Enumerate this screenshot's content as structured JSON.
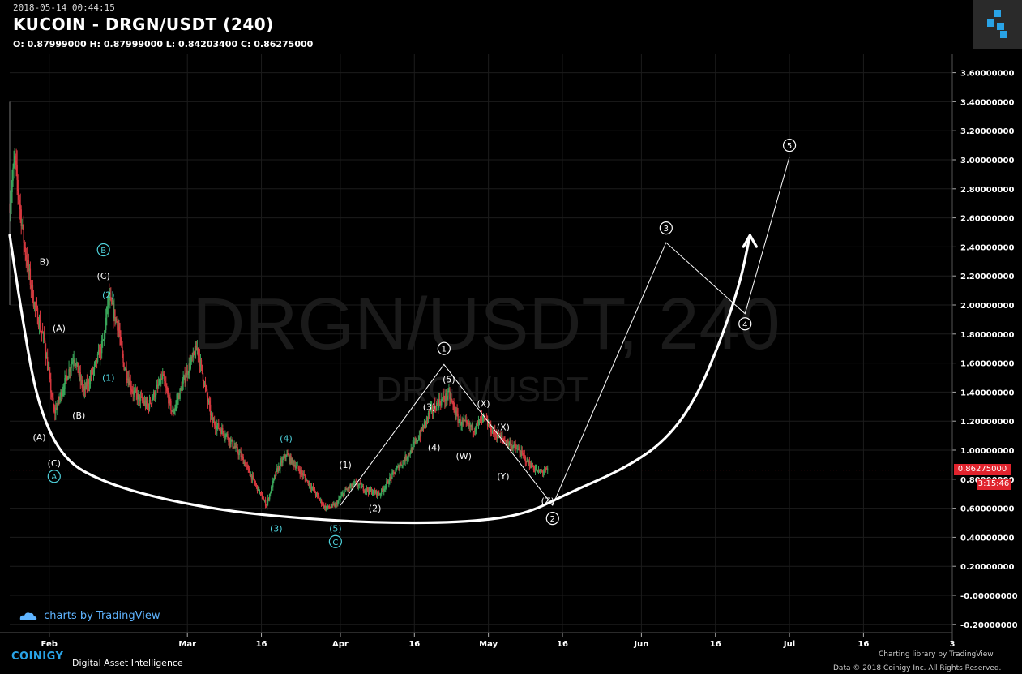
{
  "header": {
    "timestamp": "2018-05-14 00:44:15",
    "title": "KUCOIN - DRGN/USDT (240)",
    "ohlc": "O: 0.87999000 H: 0.87999000 L: 0.84203400 C: 0.86275000"
  },
  "watermark": {
    "main": "DRGN/USDT, 240",
    "sub": "DRGN/USDT"
  },
  "badges": {
    "last_price": "0.86275000",
    "countdown": "3:15:46"
  },
  "footer": {
    "tradingview": "charts by TradingView",
    "coinigy_logo": "COINIGY",
    "coinigy_tagline": "Digital Asset Intelligence",
    "charting_library": "Charting library by TradingView",
    "copyright": "Data © 2018 Coinigy Inc. All Rights Reserved."
  },
  "colors": {
    "background": "#000000",
    "up": "#3aa65a",
    "down": "#d8383f",
    "badge": "#e0232d",
    "accent_cyan": "#4fd2dc",
    "logo_blue": "#29a3e6"
  },
  "chart_data": {
    "type": "candlestick",
    "title": "KUCOIN - DRGN/USDT (240)",
    "y_axis": {
      "ticks": [
        "-0.20000000",
        "-0.00000000",
        "0.20000000",
        "0.40000000",
        "0.60000000",
        "0.80000000",
        "1.00000000",
        "1.20000000",
        "1.40000000",
        "1.60000000",
        "1.80000000",
        "2.00000000",
        "2.20000000",
        "2.40000000",
        "2.60000000",
        "2.80000000",
        "3.00000000",
        "3.20000000",
        "3.40000000",
        "3.60000000"
      ],
      "range": [
        -0.2,
        3.6
      ],
      "position": "right"
    },
    "x_axis": {
      "ticks": [
        "Feb",
        "Mar",
        "16",
        "Apr",
        "16",
        "May",
        "16",
        "Jun",
        "16",
        "Jul",
        "16",
        "3"
      ],
      "range": [
        "2018-01-24",
        "2018-08-03"
      ]
    },
    "price_path": [
      [
        "2018-01-24",
        2.7
      ],
      [
        "2018-01-25",
        3.0
      ],
      [
        "2018-01-27",
        2.4
      ],
      [
        "2018-01-29",
        2.0
      ],
      [
        "2018-01-31",
        1.75
      ],
      [
        "2018-02-02",
        1.25
      ],
      [
        "2018-02-04",
        1.45
      ],
      [
        "2018-02-06",
        1.65
      ],
      [
        "2018-02-08",
        1.4
      ],
      [
        "2018-02-10",
        1.55
      ],
      [
        "2018-02-12",
        1.75
      ],
      [
        "2018-02-13",
        2.05
      ],
      [
        "2018-02-15",
        1.85
      ],
      [
        "2018-02-16",
        1.6
      ],
      [
        "2018-02-18",
        1.4
      ],
      [
        "2018-02-21",
        1.3
      ],
      [
        "2018-02-24",
        1.5
      ],
      [
        "2018-02-26",
        1.25
      ],
      [
        "2018-03-01",
        1.55
      ],
      [
        "2018-03-03",
        1.7
      ],
      [
        "2018-03-06",
        1.2
      ],
      [
        "2018-03-09",
        1.1
      ],
      [
        "2018-03-12",
        0.95
      ],
      [
        "2018-03-15",
        0.75
      ],
      [
        "2018-03-17",
        0.62
      ],
      [
        "2018-03-19",
        0.85
      ],
      [
        "2018-03-21",
        0.97
      ],
      [
        "2018-03-24",
        0.85
      ],
      [
        "2018-03-27",
        0.7
      ],
      [
        "2018-03-29",
        0.6
      ],
      [
        "2018-03-31",
        0.62
      ],
      [
        "2018-04-02",
        0.72
      ],
      [
        "2018-04-04",
        0.77
      ],
      [
        "2018-04-06",
        0.73
      ],
      [
        "2018-04-09",
        0.7
      ],
      [
        "2018-04-12",
        0.85
      ],
      [
        "2018-04-15",
        0.98
      ],
      [
        "2018-04-17",
        1.1
      ],
      [
        "2018-04-19",
        1.25
      ],
      [
        "2018-04-21",
        1.33
      ],
      [
        "2018-04-23",
        1.38
      ],
      [
        "2018-04-25",
        1.2
      ],
      [
        "2018-04-28",
        1.15
      ],
      [
        "2018-04-30",
        1.22
      ],
      [
        "2018-05-02",
        1.12
      ],
      [
        "2018-05-05",
        1.05
      ],
      [
        "2018-05-07",
        1.0
      ],
      [
        "2018-05-09",
        0.92
      ],
      [
        "2018-05-11",
        0.85
      ],
      [
        "2018-05-13",
        0.86
      ]
    ],
    "projection_path": [
      [
        "2018-04-01",
        0.62
      ],
      [
        "2018-04-22",
        1.59
      ],
      [
        "2018-05-14",
        0.62
      ],
      [
        "2018-06-06",
        2.43
      ],
      [
        "2018-06-22",
        1.94
      ],
      [
        "2018-07-01",
        3.02
      ]
    ],
    "cup_curve": [
      [
        "2018-01-24",
        2.48
      ],
      [
        "2018-01-27",
        1.8
      ],
      [
        "2018-01-30",
        1.28
      ],
      [
        "2018-02-04",
        0.93
      ],
      [
        "2018-02-12",
        0.78
      ],
      [
        "2018-02-23",
        0.67
      ],
      [
        "2018-03-09",
        0.58
      ],
      [
        "2018-03-24",
        0.53
      ],
      [
        "2018-04-08",
        0.5
      ],
      [
        "2018-04-25",
        0.5
      ],
      [
        "2018-05-08",
        0.55
      ],
      [
        "2018-05-17",
        0.7
      ],
      [
        "2018-05-29",
        0.88
      ],
      [
        "2018-06-06",
        1.07
      ],
      [
        "2018-06-12",
        1.35
      ],
      [
        "2018-06-17",
        1.75
      ],
      [
        "2018-06-21",
        2.15
      ],
      [
        "2018-06-23",
        2.48
      ]
    ],
    "wave_labels": [
      {
        "text": "B)",
        "date": "2018-01-31",
        "y": 2.3,
        "color": "white",
        "circled": false
      },
      {
        "text": "B",
        "date": "2018-02-12",
        "y": 2.38,
        "color": "cyan",
        "circled": true
      },
      {
        "text": "(C)",
        "date": "2018-02-12",
        "y": 2.2,
        "color": "white",
        "circled": false
      },
      {
        "text": "(2)",
        "date": "2018-02-13",
        "y": 2.07,
        "color": "cyan",
        "circled": false
      },
      {
        "text": "(A)",
        "date": "2018-02-03",
        "y": 1.84,
        "color": "white",
        "circled": false
      },
      {
        "text": "(1)",
        "date": "2018-02-13",
        "y": 1.5,
        "color": "cyan",
        "circled": false
      },
      {
        "text": "(B)",
        "date": "2018-02-07",
        "y": 1.24,
        "color": "white",
        "circled": false
      },
      {
        "text": "(A)",
        "date": "2018-01-30",
        "y": 1.09,
        "color": "white",
        "circled": false
      },
      {
        "text": "(C)",
        "date": "2018-02-02",
        "y": 0.91,
        "color": "white",
        "circled": false
      },
      {
        "text": "A",
        "date": "2018-02-02",
        "y": 0.82,
        "color": "cyan",
        "circled": true
      },
      {
        "text": "(3)",
        "date": "2018-03-19",
        "y": 0.46,
        "color": "cyan",
        "circled": false
      },
      {
        "text": "(4)",
        "date": "2018-03-21",
        "y": 1.08,
        "color": "cyan",
        "circled": false
      },
      {
        "text": "(5)",
        "date": "2018-03-31",
        "y": 0.46,
        "color": "cyan",
        "circled": false
      },
      {
        "text": "C",
        "date": "2018-03-31",
        "y": 0.37,
        "color": "cyan",
        "circled": true
      },
      {
        "text": "(1)",
        "date": "2018-04-02",
        "y": 0.9,
        "color": "white",
        "circled": false
      },
      {
        "text": "(2)",
        "date": "2018-04-08",
        "y": 0.6,
        "color": "white",
        "circled": false
      },
      {
        "text": "(3)",
        "date": "2018-04-19",
        "y": 1.3,
        "color": "white",
        "circled": false
      },
      {
        "text": "(4)",
        "date": "2018-04-20",
        "y": 1.02,
        "color": "white",
        "circled": false
      },
      {
        "text": "(5)",
        "date": "2018-04-23",
        "y": 1.49,
        "color": "white",
        "circled": false
      },
      {
        "text": "(W)",
        "date": "2018-04-26",
        "y": 0.96,
        "color": "white",
        "circled": false
      },
      {
        "text": "(X)",
        "date": "2018-04-30",
        "y": 1.32,
        "color": "white",
        "circled": false
      },
      {
        "text": "(X)",
        "date": "2018-05-04",
        "y": 1.16,
        "color": "white",
        "circled": false
      },
      {
        "text": "(Y)",
        "date": "2018-05-04",
        "y": 0.82,
        "color": "white",
        "circled": false
      },
      {
        "text": "(Z)",
        "date": "2018-05-13",
        "y": 0.65,
        "color": "white",
        "circled": false
      },
      {
        "text": "1",
        "date": "2018-04-22",
        "y": 1.7,
        "color": "white",
        "circled": true
      },
      {
        "text": "2",
        "date": "2018-05-14",
        "y": 0.53,
        "color": "white",
        "circled": true
      },
      {
        "text": "3",
        "date": "2018-06-06",
        "y": 2.53,
        "color": "white",
        "circled": true
      },
      {
        "text": "4",
        "date": "2018-06-22",
        "y": 1.87,
        "color": "white",
        "circled": true
      },
      {
        "text": "5",
        "date": "2018-07-01",
        "y": 3.1,
        "color": "white",
        "circled": true
      }
    ],
    "last_price": 0.86275,
    "grid": true,
    "legend": "none"
  }
}
